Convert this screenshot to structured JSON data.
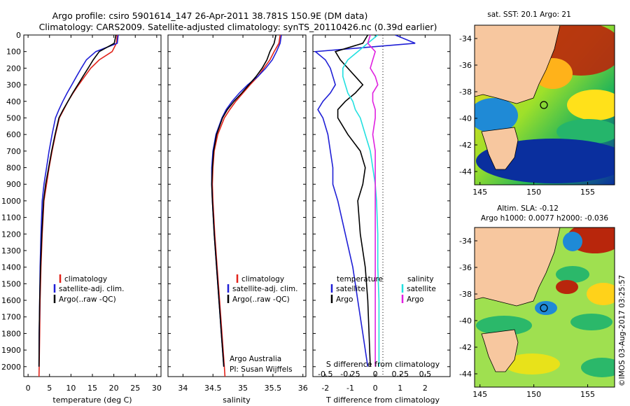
{
  "header": {
    "line1": "Argo profile: csiro 5901614_147 26-Apr-2011 38.781S 150.9E (DM data)",
    "line2": "Climatology: CARS2009. Satellite-adjusted climatology: synTS_20110426.nc (0.39d earlier)"
  },
  "side_label": "©IMOS 03-Aug-2017 03:25:57",
  "colors": {
    "climatology": "#e2231a",
    "satellite": "#1f1fd6",
    "argo": "#000000",
    "sal_sat": "#22e0e0",
    "sal_argo": "#e020e0",
    "land": "#f7c79f"
  },
  "chart_data": [
    {
      "type": "line",
      "panel": "temperature",
      "xlabel": "temperature (deg C)",
      "ylabel": "",
      "xlim": [
        -1,
        31
      ],
      "ylim": [
        2060,
        0
      ],
      "xticks": [
        0,
        5,
        10,
        15,
        20,
        25,
        30
      ],
      "yticks": [
        0,
        100,
        200,
        300,
        400,
        500,
        600,
        700,
        800,
        900,
        1000,
        1100,
        1200,
        1300,
        1400,
        1500,
        1600,
        1700,
        1800,
        1900,
        2000
      ],
      "legend": [
        "climatology",
        "satellite-adj. clim.",
        "Argo(..raw -QC)"
      ],
      "series": [
        {
          "name": "climatology",
          "color": "#e2231a",
          "x": [
            20.8,
            20.6,
            19.6,
            16.6,
            14.6,
            13.2,
            11.8,
            10.5,
            9.3,
            8.3,
            7.3,
            6.4,
            5.6,
            4.9,
            4.3,
            3.7,
            3.3,
            3.0,
            2.8,
            2.7,
            2.6,
            2.55
          ],
          "y": [
            0,
            50,
            100,
            150,
            200,
            250,
            300,
            350,
            400,
            450,
            500,
            600,
            700,
            800,
            900,
            1000,
            1200,
            1400,
            1600,
            1800,
            2000,
            2060
          ]
        },
        {
          "name": "satellite-adj. clim.",
          "color": "#1f1fd6",
          "x": [
            21.0,
            20.8,
            15.8,
            13.6,
            12.4,
            11.3,
            10.2,
            9.1,
            8.1,
            7.2,
            6.4,
            5.6,
            4.9,
            4.3,
            3.7,
            3.3,
            3.0,
            2.8,
            2.7,
            2.6,
            2.55
          ],
          "y": [
            0,
            50,
            100,
            150,
            200,
            250,
            300,
            350,
            400,
            450,
            500,
            600,
            700,
            800,
            900,
            1000,
            1200,
            1400,
            1600,
            1800,
            2000
          ]
        },
        {
          "name": "Argo(..raw -QC)",
          "color": "#000000",
          "x": [
            20.5,
            20.1,
            16.6,
            15.2,
            14.0,
            12.8,
            11.6,
            10.4,
            9.3,
            8.2,
            7.2,
            6.3,
            5.5,
            4.8,
            4.1,
            3.6,
            3.2,
            2.9,
            2.7,
            2.6,
            2.55
          ],
          "y": [
            0,
            50,
            100,
            150,
            200,
            250,
            300,
            350,
            400,
            450,
            500,
            600,
            700,
            800,
            900,
            1000,
            1200,
            1400,
            1600,
            1800,
            2000
          ]
        }
      ]
    },
    {
      "type": "line",
      "panel": "salinity",
      "xlabel": "salinity",
      "xlim": [
        33.75,
        36.05
      ],
      "ylim": [
        2060,
        0
      ],
      "xticks": [
        34,
        34.5,
        35,
        35.5,
        36
      ],
      "legend": [
        "climatology",
        "satellite-adj. clim.",
        "Argo(..raw -QC)"
      ],
      "annotation": [
        "Argo Australia",
        "PI: Susan Wijffels"
      ],
      "series": [
        {
          "name": "climatology",
          "color": "#e2231a",
          "x": [
            35.62,
            35.6,
            35.52,
            35.45,
            35.35,
            35.25,
            35.12,
            35.0,
            34.88,
            34.78,
            34.69,
            34.58,
            34.52,
            34.5,
            34.49,
            34.5,
            34.53,
            34.57,
            34.61,
            34.65,
            34.69,
            34.7
          ],
          "y": [
            0,
            50,
            100,
            150,
            200,
            250,
            300,
            350,
            400,
            450,
            500,
            600,
            700,
            800,
            900,
            1000,
            1200,
            1400,
            1600,
            1800,
            2000,
            2060
          ]
        },
        {
          "name": "satellite-adj. clim.",
          "color": "#1f1fd6",
          "x": [
            35.64,
            35.62,
            35.56,
            35.49,
            35.38,
            35.25,
            35.08,
            34.94,
            34.82,
            34.72,
            34.65,
            34.55,
            34.5,
            34.48,
            34.48,
            34.49,
            34.52,
            34.56,
            34.6,
            34.64,
            34.68
          ],
          "y": [
            0,
            50,
            100,
            150,
            200,
            250,
            300,
            350,
            400,
            450,
            500,
            600,
            700,
            800,
            900,
            1000,
            1200,
            1400,
            1600,
            1800,
            2000
          ]
        },
        {
          "name": "Argo(..raw -QC)",
          "color": "#000000",
          "x": [
            35.55,
            35.52,
            35.45,
            35.4,
            35.32,
            35.22,
            35.1,
            34.98,
            34.85,
            34.74,
            34.66,
            34.56,
            34.51,
            34.49,
            34.48,
            34.49,
            34.52,
            34.56,
            34.6,
            34.64,
            34.68
          ],
          "y": [
            0,
            50,
            100,
            150,
            200,
            250,
            300,
            350,
            400,
            450,
            500,
            600,
            700,
            800,
            900,
            1000,
            1200,
            1400,
            1600,
            1800,
            2000
          ]
        }
      ]
    },
    {
      "type": "line",
      "panel": "difference",
      "xlabel": "T difference from climatology",
      "xlabel_top": "S difference from climatology",
      "xlim": [
        -2.5,
        3
      ],
      "ylim": [
        2060,
        0
      ],
      "xticks": [
        -2,
        -1,
        0,
        1,
        2
      ],
      "xticks_s": [
        "-0.5",
        "-0.25",
        "0",
        "0.25",
        "0.5"
      ],
      "legend": [
        "temperature",
        "satellite",
        "Argo",
        "salinity",
        "satellite",
        "Argo"
      ],
      "series": [
        {
          "name": "satellite",
          "color": "#1f1fd6",
          "x": [
            0.8,
            1.6,
            -2.4,
            -2.0,
            -1.8,
            -1.7,
            -1.6,
            -1.8,
            -2.1,
            -2.3,
            -2.1,
            -1.9,
            -1.8,
            -1.7,
            -1.7,
            -1.5,
            -1.2,
            -0.9,
            -0.7,
            -0.5,
            -0.3
          ],
          "y": [
            0,
            50,
            100,
            150,
            200,
            250,
            300,
            350,
            400,
            450,
            500,
            600,
            700,
            800,
            900,
            1000,
            1200,
            1400,
            1600,
            1800,
            2000
          ]
        },
        {
          "name": "Argo",
          "color": "#000000",
          "x": [
            -0.3,
            -0.5,
            -1.6,
            -1.4,
            -1.1,
            -0.8,
            -0.5,
            -0.8,
            -1.2,
            -1.5,
            -1.5,
            -1.1,
            -0.6,
            -0.4,
            -0.5,
            -0.7,
            -0.6,
            -0.4,
            -0.3,
            -0.25,
            -0.2
          ],
          "y": [
            0,
            50,
            100,
            150,
            200,
            250,
            300,
            350,
            400,
            450,
            500,
            600,
            700,
            800,
            900,
            1000,
            1200,
            1400,
            1600,
            1800,
            2000
          ]
        },
        {
          "name": "satellite",
          "color": "#22e0e0",
          "x": [
            0.1,
            -0.3,
            -0.7,
            -1.1,
            -1.3,
            -1.3,
            -1.2,
            -1.1,
            -0.9,
            -0.8,
            -0.6,
            -0.4,
            -0.2,
            -0.1,
            0.0,
            0.05,
            0.1,
            0.1,
            0.15,
            0.15,
            0.15
          ],
          "y": [
            0,
            50,
            100,
            150,
            200,
            250,
            300,
            350,
            400,
            450,
            500,
            600,
            700,
            800,
            900,
            1000,
            1200,
            1400,
            1600,
            1800,
            2000
          ]
        },
        {
          "name": "Argo",
          "color": "#e020e0",
          "x": [
            -0.2,
            -0.3,
            0.0,
            -0.1,
            -0.2,
            0.0,
            0.1,
            -0.1,
            -0.1,
            0.0,
            0.0,
            -0.1,
            0.0,
            0.0,
            0.0,
            0.0,
            0.0,
            0.0,
            0.0,
            0.0,
            0.0
          ],
          "y": [
            0,
            50,
            100,
            150,
            200,
            250,
            300,
            350,
            400,
            450,
            500,
            600,
            700,
            800,
            900,
            1000,
            1200,
            1400,
            1600,
            1800,
            2000
          ]
        }
      ]
    },
    {
      "type": "heatmap",
      "panel": "sst-map",
      "title": "sat. SST: 20.1  Argo: 21",
      "xlim": [
        144.5,
        157.5
      ],
      "ylim": [
        -45,
        -33
      ],
      "xticks": [
        145,
        150,
        155
      ],
      "yticks": [
        -34,
        -36,
        -38,
        -40,
        -42,
        -44
      ],
      "profile_location": [
        150.9,
        -38.781
      ]
    },
    {
      "type": "heatmap",
      "panel": "sla-map",
      "title": "Altim. SLA: -0.12",
      "subtitle": "Argo h1000: 0.0077 h2000: -0.036",
      "xlim": [
        144.5,
        157.5
      ],
      "ylim": [
        -45,
        -33
      ],
      "xticks": [
        145,
        150,
        155
      ],
      "yticks": [
        -34,
        -36,
        -38,
        -40,
        -42,
        -44
      ],
      "profile_location": [
        150.9,
        -38.781
      ]
    }
  ]
}
